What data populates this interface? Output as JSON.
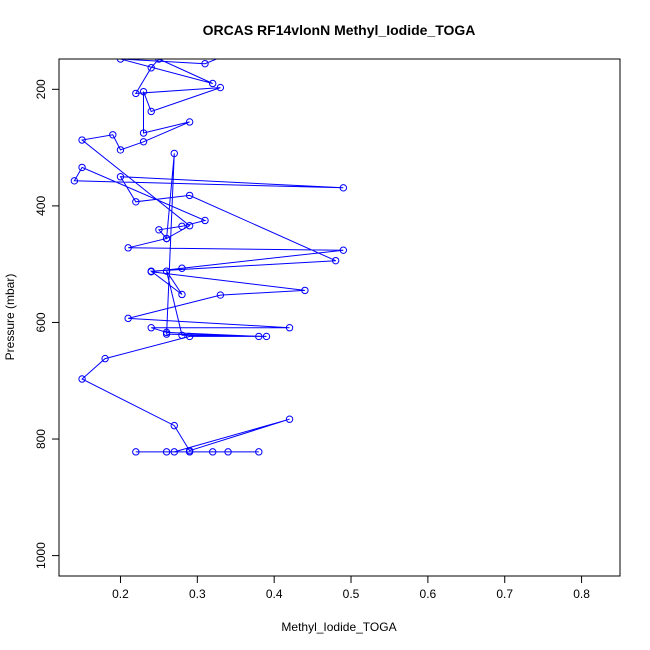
{
  "chart_data": {
    "type": "line",
    "title": "ORCAS RF14vlonN Methyl_Iodide_TOGA",
    "xlabel": "Methyl_Iodide_TOGA",
    "ylabel": "Pressure (mbar)",
    "xlim": [
      0.12,
      0.85
    ],
    "ylim": [
      1035,
      148
    ],
    "y_reversed": true,
    "x_ticks": [
      0.2,
      0.3,
      0.4,
      0.5,
      0.6,
      0.7,
      0.8
    ],
    "x_tick_labels": [
      "0.2",
      "0.3",
      "0.4",
      "0.5",
      "0.6",
      "0.7",
      "0.8"
    ],
    "y_ticks": [
      200,
      400,
      600,
      800,
      1000
    ],
    "y_tick_labels": [
      "200",
      "400",
      "600",
      "800",
      "1000"
    ],
    "grid": false,
    "legend": "none",
    "series": [
      {
        "color": "#0000ff",
        "marker": "open-circle",
        "points": [
          [
            0.26,
            822
          ],
          [
            0.38,
            822
          ],
          [
            0.22,
            822
          ],
          [
            0.34,
            822
          ],
          [
            0.29,
            822
          ],
          [
            0.32,
            822
          ],
          [
            0.27,
            822
          ],
          [
            0.42,
            766
          ],
          [
            0.29,
            820
          ],
          [
            0.27,
            777
          ],
          [
            0.15,
            697
          ],
          [
            0.18,
            662
          ],
          [
            0.29,
            624
          ],
          [
            0.38,
            624
          ],
          [
            0.26,
            617
          ],
          [
            0.24,
            609
          ],
          [
            0.42,
            609
          ],
          [
            0.21,
            593
          ],
          [
            0.33,
            553
          ],
          [
            0.44,
            545
          ],
          [
            0.24,
            513
          ],
          [
            0.28,
            507
          ],
          [
            0.49,
            476
          ],
          [
            0.21,
            472
          ],
          [
            0.26,
            456
          ],
          [
            0.25,
            441
          ],
          [
            0.28,
            435
          ],
          [
            0.31,
            425
          ],
          [
            0.15,
            334
          ],
          [
            0.14,
            357
          ],
          [
            0.49,
            369
          ],
          [
            0.2,
            350
          ],
          [
            0.22,
            393
          ],
          [
            0.29,
            382
          ],
          [
            0.48,
            494
          ],
          [
            0.24,
            512
          ],
          [
            0.28,
            552
          ],
          [
            0.26,
            512
          ],
          [
            0.28,
            622
          ],
          [
            0.39,
            624
          ],
          [
            0.26,
            620
          ],
          [
            0.27,
            310
          ],
          [
            0.26,
            456
          ],
          [
            0.29,
            434
          ],
          [
            0.15,
            287
          ],
          [
            0.19,
            278
          ],
          [
            0.2,
            304
          ],
          [
            0.23,
            290
          ],
          [
            0.29,
            256
          ],
          [
            0.23,
            275
          ],
          [
            0.23,
            204
          ],
          [
            0.24,
            238
          ],
          [
            0.33,
            197
          ],
          [
            0.22,
            207
          ],
          [
            0.24,
            163
          ],
          [
            0.25,
            148
          ],
          [
            0.32,
            190
          ],
          [
            0.2,
            148
          ],
          [
            0.31,
            156
          ],
          [
            0.34,
            140
          ]
        ]
      }
    ]
  }
}
